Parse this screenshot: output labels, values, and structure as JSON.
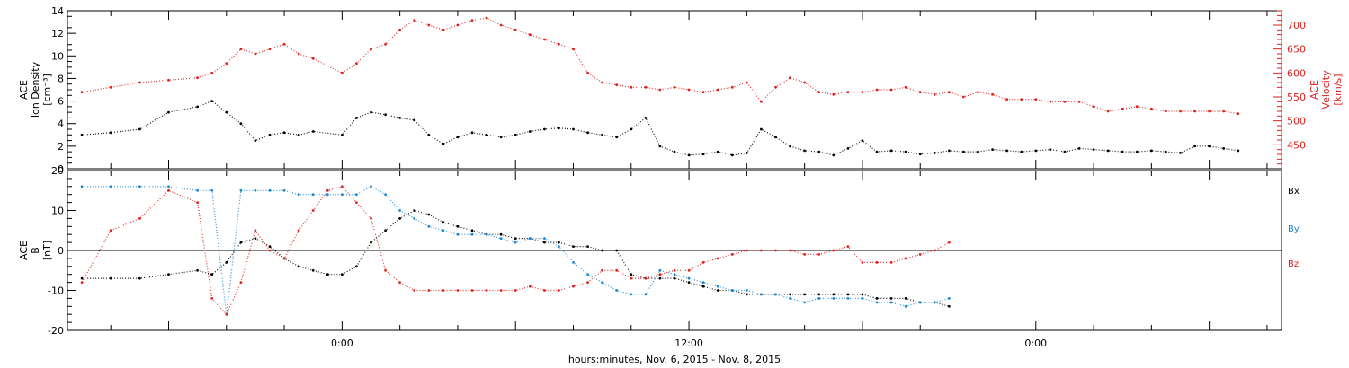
{
  "chart_data": [
    {
      "type": "scatter",
      "panel": "top",
      "ylabel_left": [
        "ACE",
        "Ion Density",
        "[cm⁻³]"
      ],
      "ylabel_right": [
        "ACE",
        "Velocity",
        "[km/s]"
      ],
      "ylim_left": [
        0,
        14
      ],
      "yticks_left": [
        0,
        2,
        4,
        6,
        8,
        10,
        12,
        14
      ],
      "ylim_right": [
        400,
        730
      ],
      "yticks_right": [
        450,
        500,
        550,
        600,
        650,
        700
      ],
      "xlim_hours": [
        -9.5,
        32.5
      ],
      "grid": false,
      "series": [
        {
          "axis": "left",
          "color": "#000000",
          "x": [
            -9.0,
            -8.0,
            -7.0,
            -6.0,
            -5.0,
            -4.5,
            -4.0,
            -3.5,
            -3.0,
            -2.5,
            -2.0,
            -1.5,
            -1.0,
            0.0,
            0.5,
            1.0,
            1.5,
            2.0,
            2.5,
            3.0,
            3.5,
            4.0,
            4.5,
            5.0,
            5.5,
            6.0,
            6.5,
            7.0,
            7.5,
            8.0,
            8.5,
            9.0,
            9.5,
            10.0,
            10.5,
            11.0,
            11.5,
            12.0,
            12.5,
            13.0,
            13.5,
            14.0,
            14.5,
            15.0,
            15.5,
            16.0,
            16.5,
            17.0,
            17.5,
            18.0,
            18.5,
            19.0,
            19.5,
            20.0,
            20.5,
            21.0,
            21.5,
            22.0,
            22.5,
            23.0,
            23.5,
            24.0,
            24.5,
            25.0,
            25.5,
            26.0,
            26.5,
            27.0,
            27.5,
            28.0,
            28.5,
            29.0,
            29.5,
            30.0,
            30.5,
            31.0
          ],
          "y": [
            3.0,
            3.2,
            3.5,
            5.0,
            5.5,
            6.0,
            5.0,
            4.0,
            2.5,
            3.0,
            3.2,
            3.0,
            3.3,
            3.0,
            4.5,
            5.0,
            4.8,
            4.5,
            4.3,
            3.0,
            2.2,
            2.8,
            3.2,
            3.0,
            2.8,
            3.0,
            3.3,
            3.5,
            3.6,
            3.5,
            3.2,
            3.0,
            2.8,
            3.5,
            4.5,
            2.0,
            1.5,
            1.2,
            1.3,
            1.5,
            1.2,
            1.4,
            3.5,
            2.8,
            2.0,
            1.6,
            1.5,
            1.2,
            1.8,
            2.5,
            1.5,
            1.6,
            1.5,
            1.3,
            1.4,
            1.6,
            1.5,
            1.5,
            1.7,
            1.6,
            1.5,
            1.6,
            1.7,
            1.5,
            1.8,
            1.7,
            1.6,
            1.5,
            1.5,
            1.6,
            1.5,
            1.4,
            2.0,
            2.0,
            1.8,
            1.6
          ]
        },
        {
          "axis": "right",
          "color": "#e0201c",
          "x": [
            -9.0,
            -8.0,
            -7.0,
            -6.0,
            -5.0,
            -4.5,
            -4.0,
            -3.5,
            -3.0,
            -2.5,
            -2.0,
            -1.5,
            -1.0,
            0.0,
            0.5,
            1.0,
            1.5,
            2.0,
            2.5,
            3.0,
            3.5,
            4.0,
            4.5,
            5.0,
            5.5,
            6.0,
            6.5,
            7.0,
            7.5,
            8.0,
            8.5,
            9.0,
            9.5,
            10.0,
            10.5,
            11.0,
            11.5,
            12.0,
            12.5,
            13.0,
            13.5,
            14.0,
            14.5,
            15.0,
            15.5,
            16.0,
            16.5,
            17.0,
            17.5,
            18.0,
            18.5,
            19.0,
            19.5,
            20.0,
            20.5,
            21.0,
            21.5,
            22.0,
            22.5,
            23.0,
            23.5,
            24.0,
            24.5,
            25.0,
            25.5,
            26.0,
            26.5,
            27.0,
            27.5,
            28.0,
            28.5,
            29.0,
            29.5,
            30.0,
            30.5,
            31.0
          ],
          "y": [
            560,
            570,
            580,
            585,
            590,
            600,
            620,
            650,
            640,
            650,
            660,
            640,
            630,
            600,
            620,
            650,
            660,
            690,
            710,
            700,
            690,
            700,
            710,
            715,
            700,
            690,
            680,
            670,
            660,
            650,
            600,
            580,
            575,
            570,
            570,
            565,
            570,
            565,
            560,
            565,
            570,
            580,
            540,
            570,
            590,
            580,
            560,
            555,
            560,
            560,
            565,
            565,
            570,
            560,
            555,
            560,
            550,
            560,
            555,
            545,
            545,
            545,
            540,
            540,
            540,
            530,
            520,
            525,
            530,
            525,
            520,
            520,
            520,
            520,
            520,
            515
          ]
        }
      ]
    },
    {
      "type": "scatter",
      "panel": "bottom",
      "ylabel_left": [
        "ACE",
        "B",
        "[nT]"
      ],
      "ylim_left": [
        -20,
        20
      ],
      "yticks_left": [
        -20,
        -10,
        0,
        10,
        20
      ],
      "zero_line": true,
      "xlim_hours": [
        -9.5,
        32.5
      ],
      "xticks_hours": [
        0,
        12,
        24
      ],
      "xtick_labels": [
        "0:00",
        "12:00",
        "0:00"
      ],
      "xlabel": "hours:minutes, Nov. 6, 2015 - Nov. 8, 2015",
      "legend": {
        "placement": "right",
        "items": [
          {
            "label": "Bx",
            "color": "#000000"
          },
          {
            "label": "By",
            "color": "#1a86d6"
          },
          {
            "label": "Bz",
            "color": "#e0201c"
          }
        ]
      },
      "grid": false,
      "series": [
        {
          "name": "Bx",
          "color": "#000000",
          "x": [
            -9.0,
            -8.0,
            -7.0,
            -6.0,
            -5.0,
            -4.5,
            -4.0,
            -3.5,
            -3.0,
            -2.5,
            -2.0,
            -1.5,
            -1.0,
            -0.5,
            0.0,
            0.5,
            1.0,
            1.5,
            2.0,
            2.5,
            3.0,
            3.5,
            4.0,
            4.5,
            5.0,
            5.5,
            6.0,
            6.5,
            7.0,
            7.5,
            8.0,
            8.5,
            9.0,
            9.5,
            10.0,
            10.5,
            11.0,
            11.5,
            12.0,
            12.5,
            13.0,
            13.5,
            14.0,
            14.5,
            15.0,
            15.5,
            16.0,
            16.5,
            17.0,
            17.5,
            18.0,
            18.5,
            19.0,
            19.5,
            20.0,
            20.5,
            21.0
          ],
          "y": [
            -7,
            -7,
            -7,
            -6,
            -5,
            -6,
            -3,
            2,
            3,
            1,
            -2,
            -4,
            -5,
            -6,
            -6,
            -4,
            2,
            5,
            8,
            10,
            9,
            7,
            6,
            5,
            4,
            4,
            3,
            3,
            2,
            2,
            1,
            1,
            0,
            0,
            -6,
            -7,
            -7,
            -7,
            -8,
            -9,
            -10,
            -10,
            -11,
            -11,
            -11,
            -11,
            -11,
            -11,
            -11,
            -11,
            -11,
            -12,
            -12,
            -12,
            -13,
            -13,
            -14
          ]
        },
        {
          "name": "By",
          "color": "#1a86d6",
          "x": [
            -9.0,
            -8.0,
            -7.0,
            -6.0,
            -5.0,
            -4.5,
            -4.0,
            -3.5,
            -3.0,
            -2.5,
            -2.0,
            -1.5,
            -1.0,
            -0.5,
            0.0,
            0.5,
            1.0,
            1.5,
            2.0,
            2.5,
            3.0,
            3.5,
            4.0,
            4.5,
            5.0,
            5.5,
            6.0,
            6.5,
            7.0,
            7.5,
            8.0,
            8.5,
            9.0,
            9.5,
            10.0,
            10.5,
            11.0,
            11.5,
            12.0,
            12.5,
            13.0,
            13.5,
            14.0,
            14.5,
            15.0,
            15.5,
            16.0,
            16.5,
            17.0,
            17.5,
            18.0,
            18.5,
            19.0,
            19.5,
            20.0,
            20.5,
            21.0
          ],
          "y": [
            16,
            16,
            16,
            16,
            15,
            15,
            -16,
            15,
            15,
            15,
            15,
            14,
            14,
            14,
            14,
            14,
            16,
            14,
            10,
            8,
            6,
            5,
            4,
            4,
            4,
            3,
            2,
            3,
            3,
            1,
            -3,
            -6,
            -8,
            -10,
            -11,
            -11,
            -5,
            -6,
            -7,
            -8,
            -9,
            -10,
            -10,
            -11,
            -11,
            -12,
            -13,
            -12,
            -12,
            -12,
            -12,
            -13,
            -13,
            -14,
            -13,
            -13,
            -12
          ]
        },
        {
          "name": "Bz",
          "color": "#e0201c",
          "x": [
            -9.0,
            -8.0,
            -7.0,
            -6.0,
            -5.0,
            -4.5,
            -4.0,
            -3.5,
            -3.0,
            -2.5,
            -2.0,
            -1.5,
            -1.0,
            -0.5,
            0.0,
            0.5,
            1.0,
            1.5,
            2.0,
            2.5,
            3.0,
            3.5,
            4.0,
            4.5,
            5.0,
            5.5,
            6.0,
            6.5,
            7.0,
            7.5,
            8.0,
            8.5,
            9.0,
            9.5,
            10.0,
            10.5,
            11.0,
            11.5,
            12.0,
            12.5,
            13.0,
            13.5,
            14.0,
            14.5,
            15.0,
            15.5,
            16.0,
            16.5,
            17.0,
            17.5,
            18.0,
            18.5,
            19.0,
            19.5,
            20.0,
            20.5,
            21.0
          ],
          "y": [
            -8,
            5,
            8,
            15,
            12,
            -12,
            -16,
            -8,
            5,
            0,
            -2,
            5,
            10,
            15,
            16,
            12,
            8,
            -5,
            -8,
            -10,
            -10,
            -10,
            -10,
            -10,
            -10,
            -10,
            -10,
            -9,
            -10,
            -10,
            -9,
            -8,
            -5,
            -5,
            -7,
            -7,
            -6,
            -5,
            -5,
            -3,
            -2,
            -1,
            0,
            0,
            0,
            0,
            -1,
            -1,
            0,
            1,
            -3,
            -3,
            -3,
            -2,
            -1,
            0,
            2
          ]
        }
      ]
    }
  ]
}
